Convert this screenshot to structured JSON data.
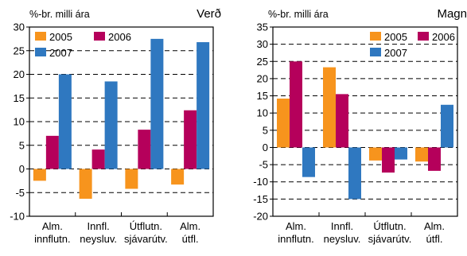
{
  "colors": {
    "2005": "#f7941d",
    "2006": "#b5005b",
    "2007": "#2f78c0",
    "frame": "#000000",
    "grid": "#000000"
  },
  "chart_data": [
    {
      "type": "bar",
      "title": "Verð",
      "ylabel": "%-br. milli ára",
      "ylim": [
        -10,
        30
      ],
      "yticks": [
        -10,
        -5,
        0,
        5,
        10,
        15,
        20,
        25,
        30
      ],
      "ytick_labels": [
        "-10",
        "-5",
        "0",
        "5",
        "10",
        "15",
        "20",
        "25",
        "30"
      ],
      "grid": true,
      "legend_placement": "top-left",
      "categories": [
        [
          "Alm.",
          "innflutn."
        ],
        [
          "Innfl.",
          "neysluv."
        ],
        [
          "Útflutn.",
          "sjávarútv."
        ],
        [
          "Alm.",
          "útfl."
        ]
      ],
      "series": [
        {
          "name": "2005",
          "values": [
            -2.5,
            -6.3,
            -4.2,
            -3.3
          ]
        },
        {
          "name": "2006",
          "values": [
            7.0,
            4.1,
            8.3,
            12.4
          ]
        },
        {
          "name": "2007",
          "values": [
            20.0,
            18.5,
            27.5,
            26.8
          ]
        }
      ]
    },
    {
      "type": "bar",
      "title": "Magn",
      "ylabel": "%-br. milli ára",
      "ylim": [
        -20,
        35
      ],
      "yticks": [
        -20,
        -15,
        -10,
        -5,
        0,
        5,
        10,
        15,
        20,
        25,
        30,
        35
      ],
      "ytick_labels": [
        "-20",
        "-15",
        "-10",
        "-5",
        "0",
        "5",
        "10",
        "15",
        "20",
        "25",
        "30",
        "35"
      ],
      "grid": true,
      "legend_placement": "top-right",
      "categories": [
        [
          "Alm.",
          "innflutn."
        ],
        [
          "Innfl.",
          "neysluv."
        ],
        [
          "Útflutn.",
          "sjávarútv."
        ],
        [
          "Alm.",
          "útfl."
        ]
      ],
      "series": [
        {
          "name": "2005",
          "values": [
            14.2,
            23.3,
            -3.8,
            -4.1
          ]
        },
        {
          "name": "2006",
          "values": [
            25.0,
            15.5,
            -7.3,
            -6.8
          ]
        },
        {
          "name": "2007",
          "values": [
            -8.6,
            -15.0,
            -3.5,
            12.4
          ]
        }
      ]
    }
  ]
}
